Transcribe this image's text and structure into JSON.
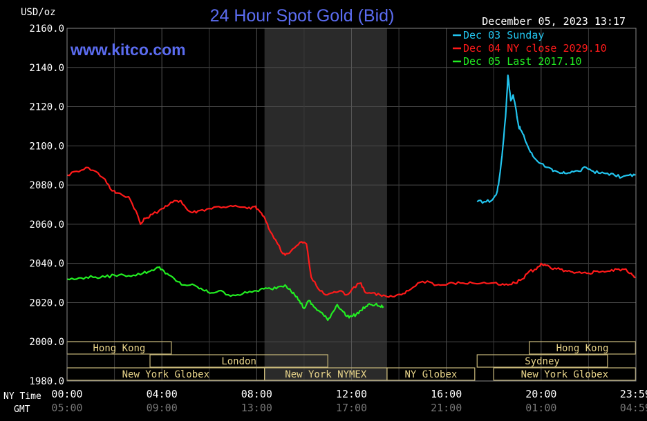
{
  "header": {
    "unit": "USD/oz",
    "title": "24 Hour Spot Gold (Bid)",
    "timestamp": "December 05, 2023 13:17",
    "website": "www.kitco.com"
  },
  "colors": {
    "background": "#000000",
    "grid": "#555555",
    "axis_text": "#ffffff",
    "title": "#5b6cf0",
    "shade": "#2a2a2a",
    "session_fill": "#c8b87a",
    "session_border": "#000000",
    "session_text": "#000000"
  },
  "chart_data": {
    "type": "line",
    "title": "24 Hour Spot Gold (Bid)",
    "ylabel": "USD/oz",
    "ylim": [
      1980,
      2160
    ],
    "yticks": [
      "2160.0",
      "2140.0",
      "2120.0",
      "2100.0",
      "2080.0",
      "2060.0",
      "2040.0",
      "2020.0",
      "2000.0",
      "1980.0"
    ],
    "xlim": [
      0,
      24
    ],
    "x_unit": "hours (NY time)",
    "ny_time_label": "NY Time",
    "gmt_label": "GMT",
    "ny_ticks": [
      {
        "x": 0,
        "label": "00:00"
      },
      {
        "x": 4,
        "label": "04:00"
      },
      {
        "x": 8,
        "label": "08:00"
      },
      {
        "x": 12,
        "label": "12:00"
      },
      {
        "x": 16,
        "label": "16:00"
      },
      {
        "x": 20,
        "label": "20:00"
      },
      {
        "x": 23.98,
        "label": "23:59"
      }
    ],
    "gmt_ticks": [
      {
        "x": 0,
        "label": "05:00"
      },
      {
        "x": 4,
        "label": "09:00"
      },
      {
        "x": 8,
        "label": "13:00"
      },
      {
        "x": 12,
        "label": "17:00"
      },
      {
        "x": 16,
        "label": "21:00"
      },
      {
        "x": 20,
        "label": "01:00"
      },
      {
        "x": 23.98,
        "label": "04:59"
      }
    ],
    "nymex_shade": [
      8.33,
      13.5
    ],
    "grid": true,
    "legend_position": "top-right",
    "series": [
      {
        "name": "Dec 03 Sunday",
        "color": "#22c4ee",
        "x": [
          17.3,
          17.6,
          17.9,
          18.1,
          18.2,
          18.35,
          18.5,
          18.6,
          18.72,
          18.82,
          18.95,
          19.05,
          19.15,
          19.3,
          19.5,
          19.7,
          20.0,
          20.3,
          20.5,
          20.8,
          21.0,
          21.3,
          21.6,
          21.9,
          22.2,
          22.5,
          22.8,
          23.1,
          23.4,
          23.7,
          23.98
        ],
        "values": [
          2071.5,
          2071.5,
          2072,
          2075,
          2080,
          2095,
          2115,
          2136,
          2123,
          2126,
          2118,
          2110,
          2108,
          2104,
          2098,
          2094,
          2091,
          2089,
          2087,
          2086,
          2086,
          2087,
          2087,
          2089,
          2087,
          2086,
          2086,
          2085,
          2084,
          2085,
          2085
        ]
      },
      {
        "name": "Dec 04 NY close 2029.10",
        "color": "#ff1a1a",
        "x": [
          0,
          0.4,
          0.8,
          1.2,
          1.6,
          1.9,
          2.1,
          2.6,
          2.9,
          3.1,
          3.3,
          3.6,
          4.0,
          4.3,
          4.6,
          4.8,
          5.1,
          5.3,
          5.6,
          6.0,
          6.4,
          6.8,
          7.2,
          7.6,
          7.9,
          8.1,
          8.3,
          8.5,
          8.8,
          9.1,
          9.3,
          9.6,
          9.9,
          10.1,
          10.3,
          10.6,
          10.9,
          11.2,
          11.5,
          11.8,
          12.1,
          12.4,
          12.6,
          12.9,
          13.2,
          13.5,
          13.8,
          14.1,
          14.4,
          14.8,
          15.2,
          15.6,
          15.9,
          16.3,
          16.7,
          17.1,
          17.5,
          17.9,
          18.3,
          18.6,
          18.9,
          19.2,
          19.5,
          19.8,
          20.0,
          20.2,
          20.5,
          20.8,
          21.1,
          21.4,
          21.7,
          22.0,
          22.3,
          22.6,
          22.9,
          23.2,
          23.5,
          23.8,
          23.98
        ],
        "values": [
          2085,
          2087,
          2089,
          2087,
          2083,
          2077,
          2076,
          2074,
          2067,
          2060,
          2063,
          2065,
          2068,
          2070,
          2072,
          2072,
          2067,
          2066,
          2067,
          2068,
          2069,
          2069,
          2069,
          2068,
          2069,
          2067,
          2064,
          2058,
          2052,
          2045,
          2045,
          2048,
          2051,
          2050,
          2033,
          2027,
          2024,
          2025,
          2026,
          2024,
          2028,
          2030,
          2025,
          2025,
          2024,
          2023,
          2023,
          2024,
          2026,
          2030,
          2031,
          2029,
          2029,
          2030,
          2030,
          2030,
          2030,
          2030,
          2029,
          2029,
          2030,
          2032,
          2036,
          2037,
          2040,
          2039,
          2037,
          2037,
          2036,
          2035,
          2035,
          2035,
          2036,
          2036,
          2036,
          2037,
          2037,
          2035,
          2033
        ]
      },
      {
        "name": "Dec 05 Last 2017.10",
        "color": "#22ee22",
        "x": [
          0,
          0.4,
          0.8,
          1.2,
          1.6,
          2.0,
          2.4,
          2.8,
          3.2,
          3.5,
          3.8,
          4.0,
          4.3,
          4.6,
          4.9,
          5.2,
          5.5,
          5.8,
          6.1,
          6.4,
          6.8,
          7.2,
          7.6,
          8.0,
          8.3,
          8.6,
          8.9,
          9.2,
          9.4,
          9.6,
          9.8,
          10.0,
          10.2,
          10.4,
          10.6,
          10.8,
          11.0,
          11.2,
          11.4,
          11.6,
          11.8,
          12.0,
          12.2,
          12.4,
          12.6,
          12.8,
          13.0,
          13.2,
          13.35
        ],
        "values": [
          2032,
          2032,
          2033,
          2033,
          2033,
          2034,
          2034,
          2034,
          2035,
          2036,
          2038,
          2037,
          2034,
          2031,
          2029,
          2029,
          2028,
          2026,
          2025,
          2026,
          2024,
          2024,
          2025,
          2026,
          2027,
          2027,
          2028,
          2029,
          2027,
          2024,
          2021,
          2017,
          2021,
          2018,
          2016,
          2014,
          2011,
          2015,
          2019,
          2016,
          2013,
          2013,
          2014,
          2016,
          2018,
          2019,
          2019,
          2018,
          2018
        ]
      }
    ],
    "sessions": [
      {
        "label": "Hong Kong",
        "row": 0,
        "start": 0,
        "end": 4.4
      },
      {
        "label": "London",
        "row": 1,
        "start": 3.5,
        "end": 11.0
      },
      {
        "label": "New York Globex",
        "row": 2,
        "start": 0,
        "end": 8.33
      },
      {
        "label": "New York NYMEX",
        "row": 2,
        "start": 8.33,
        "end": 13.5
      },
      {
        "label": "NY Globex",
        "row": 2,
        "start": 13.5,
        "end": 17.2
      },
      {
        "label": "Hong Kong",
        "row": 0,
        "start": 19.5,
        "end": 23.98
      },
      {
        "label": "Sydney",
        "row": 1,
        "start": 17.3,
        "end": 22.8
      },
      {
        "label": "New York Globex",
        "row": 2,
        "start": 18.0,
        "end": 23.98
      }
    ]
  }
}
